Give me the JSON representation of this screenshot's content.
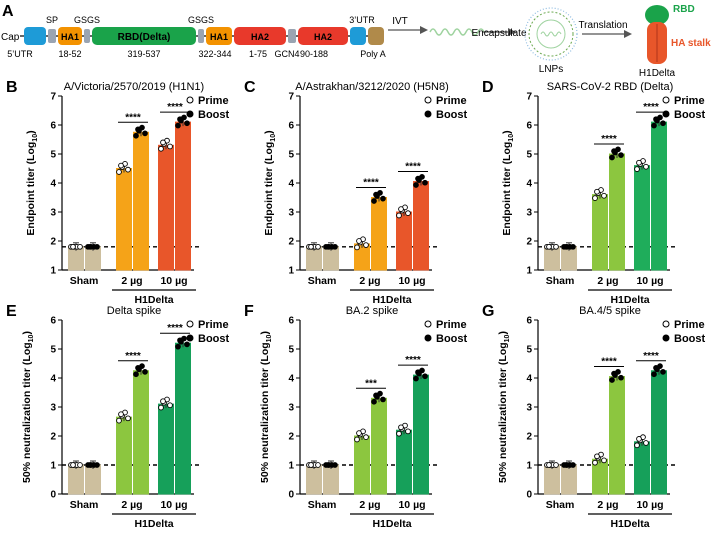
{
  "figure": {
    "panel_a": {
      "letter": "A",
      "cap": "Cap",
      "sp": "SP",
      "gsgs_1": "GSGS",
      "gsgs_2": "GSGS",
      "utr3": "3’UTR",
      "utr5": "5’UTR",
      "ha1_left": "HA1",
      "ha1_left_range": "18-52",
      "rbd": "RBD(Delta)",
      "rbd_range": "319-537",
      "ha1_right": "HA1",
      "ha1_right_range": "322-344",
      "ha2_a": "HA2",
      "ha2_a_range": "1-75",
      "gcn": "GCN4",
      "ha2_b": "HA2",
      "ha2_b_range": "90-188",
      "polya": "Poly A",
      "ivt": "IVT",
      "encapsulate": "Encapsulate",
      "lnps": "LNPs",
      "translation": "Translation",
      "rbd_label": "RBD",
      "ha_stalk": "HA stalk",
      "h1delta": "H1Delta",
      "colors": {
        "utr": "#1e9bd7",
        "ha1": "#f39200",
        "rbd": "#1aa34a",
        "ha2": "#e8392b",
        "polya": "#b08a4a",
        "linker": "#9aa4b2"
      }
    },
    "legend": {
      "prime": "Prime",
      "boost": "Boost"
    }
  },
  "chart_data": [
    {
      "letter": "B",
      "type": "bar",
      "title": "A/Victoria/2570/2019 (H1N1)",
      "ylabel": "Endpoint titer (Log",
      "ylabel_sub": "10",
      "ylabel_end": ")",
      "ylim": [
        1,
        7
      ],
      "yticks": [
        "1",
        "2",
        "3",
        "4",
        "5",
        "6",
        "7"
      ],
      "cutoff": 1.8,
      "groups": [
        "Sham",
        "2 µg",
        "10 µg"
      ],
      "xgroup": "H1Delta",
      "colors": [
        "#cdbf9e",
        "#f5a318",
        "#e8562a"
      ],
      "prime": [
        1.8,
        4.5,
        5.3
      ],
      "boost": [
        1.8,
        5.75,
        6.1
      ],
      "sig": [
        null,
        "****",
        "****"
      ]
    },
    {
      "letter": "C",
      "type": "bar",
      "title": "A/Astrakhan/3212/2020 (H5N8)",
      "ylabel": "Endpoint titer (Log",
      "ylabel_sub": "10",
      "ylabel_end": ")",
      "ylim": [
        1,
        7
      ],
      "yticks": [
        "1",
        "2",
        "3",
        "4",
        "5",
        "6",
        "7"
      ],
      "cutoff": 1.8,
      "groups": [
        "Sham",
        "2 µg",
        "10 µg"
      ],
      "xgroup": "H1Delta",
      "colors": [
        "#cdbf9e",
        "#f5a318",
        "#e8562a"
      ],
      "prime": [
        1.8,
        1.9,
        3.0
      ],
      "boost": [
        1.8,
        3.5,
        4.05
      ],
      "sig": [
        null,
        "****",
        "****"
      ]
    },
    {
      "letter": "D",
      "type": "bar",
      "title": "SARS-CoV-2 RBD (Delta)",
      "ylabel": "Endpoint titer (Log",
      "ylabel_sub": "10",
      "ylabel_end": ")",
      "ylim": [
        1,
        7
      ],
      "yticks": [
        "1",
        "2",
        "3",
        "4",
        "5",
        "6",
        "7"
      ],
      "cutoff": 1.8,
      "groups": [
        "Sham",
        "2 µg",
        "10 µg"
      ],
      "xgroup": "H1Delta",
      "colors": [
        "#cdbf9e",
        "#8cc63f",
        "#1fad5b"
      ],
      "prime": [
        1.8,
        3.6,
        4.6
      ],
      "boost": [
        1.8,
        5.0,
        6.1
      ],
      "sig": [
        null,
        "****",
        "****"
      ]
    },
    {
      "letter": "E",
      "type": "bar",
      "title": "Delta spike",
      "ylabel": "50% neutralization titer (Log",
      "ylabel_sub": "10",
      "ylabel_end": ")",
      "ylim": [
        0,
        6
      ],
      "yticks": [
        "0",
        "1",
        "2",
        "3",
        "4",
        "5",
        "6"
      ],
      "cutoff": 1.0,
      "groups": [
        "Sham",
        "2 µg",
        "10 µg"
      ],
      "xgroup": "H1Delta",
      "colors": [
        "#cdbf9e",
        "#8cc63f",
        "#16a05a"
      ],
      "prime": [
        1.0,
        2.65,
        3.1
      ],
      "boost": [
        1.0,
        4.25,
        5.2
      ],
      "sig": [
        null,
        "****",
        "****"
      ]
    },
    {
      "letter": "F",
      "type": "bar",
      "title": "BA.2 spike",
      "ylabel": "50% neutralization titer (Log",
      "ylabel_sub": "10",
      "ylabel_end": ")",
      "ylim": [
        0,
        6
      ],
      "yticks": [
        "0",
        "1",
        "2",
        "3",
        "4",
        "5",
        "6"
      ],
      "cutoff": 1.0,
      "groups": [
        "Sham",
        "2 µg",
        "10 µg"
      ],
      "xgroup": "H1Delta",
      "colors": [
        "#cdbf9e",
        "#8cc63f",
        "#16a05a"
      ],
      "prime": [
        1.0,
        2.0,
        2.2
      ],
      "boost": [
        1.0,
        3.3,
        4.1
      ],
      "sig": [
        null,
        "***",
        "****"
      ]
    },
    {
      "letter": "G",
      "type": "bar",
      "title": "BA.4/5 spike",
      "ylabel": "50% neutralization titer (Log",
      "ylabel_sub": "10",
      "ylabel_end": ")",
      "ylim": [
        0,
        6
      ],
      "yticks": [
        "0",
        "1",
        "2",
        "3",
        "4",
        "5",
        "6"
      ],
      "cutoff": 1.0,
      "groups": [
        "Sham",
        "2 µg",
        "10 µg"
      ],
      "xgroup": "H1Delta",
      "colors": [
        "#cdbf9e",
        "#8cc63f",
        "#16a05a"
      ],
      "prime": [
        1.0,
        1.2,
        1.8
      ],
      "boost": [
        1.0,
        4.05,
        4.25
      ],
      "sig": [
        null,
        "****",
        "****"
      ]
    }
  ]
}
